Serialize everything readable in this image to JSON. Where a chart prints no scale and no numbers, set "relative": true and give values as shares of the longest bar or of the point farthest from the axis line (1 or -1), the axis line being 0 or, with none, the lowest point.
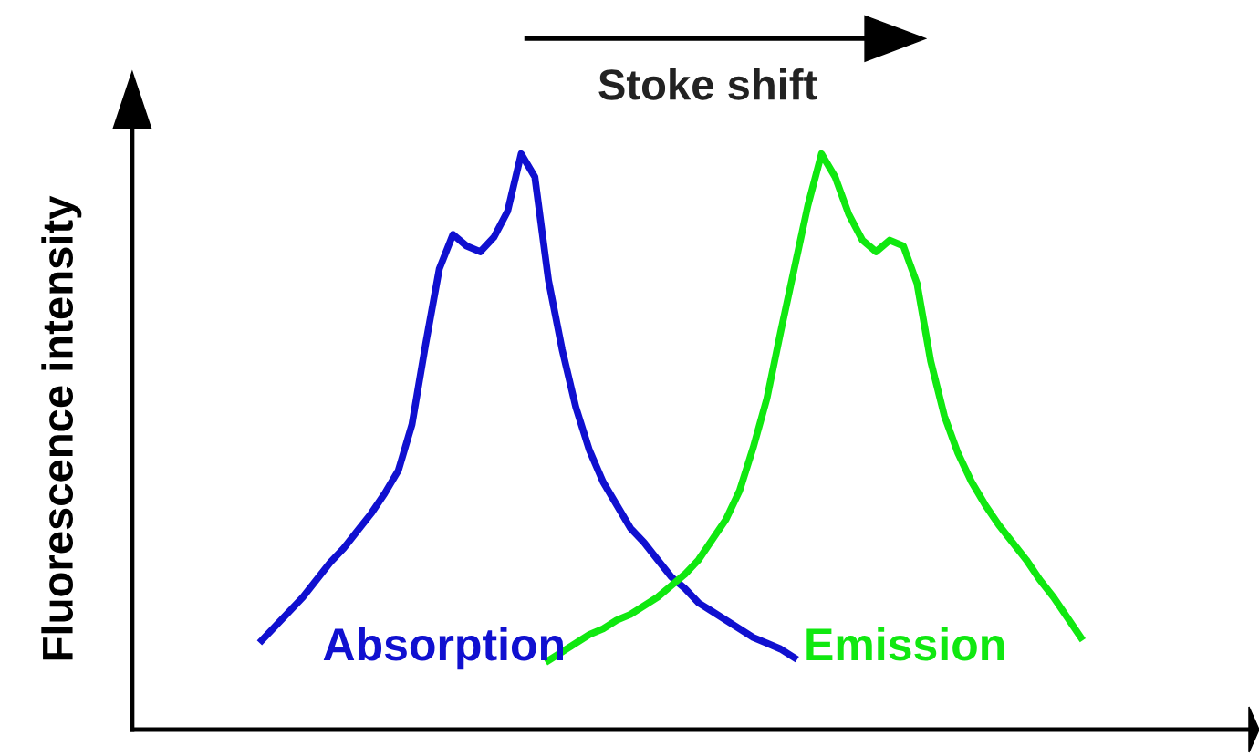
{
  "chart_data": {
    "type": "line",
    "relative": true,
    "ylabel": "Fluorescence intensity",
    "legend": false,
    "grid": false,
    "line_style": "solid",
    "marker": "none",
    "annotations": [
      "Stoke shift"
    ],
    "categories": [
      null,
      null,
      null,
      null,
      null,
      null,
      null,
      null,
      null,
      null,
      null,
      null,
      null,
      null,
      null,
      null,
      null,
      null,
      null,
      null,
      null,
      null,
      null,
      null,
      null,
      null,
      null,
      null,
      null,
      null,
      null,
      null,
      null,
      null,
      null,
      null,
      null,
      null,
      null,
      null,
      null,
      null,
      null,
      null,
      null,
      null,
      null,
      null,
      null,
      null,
      null,
      null,
      null,
      null,
      null,
      null,
      null,
      null,
      null,
      null,
      null,
      null,
      null,
      null,
      null,
      null,
      null,
      null,
      null,
      null,
      null,
      null,
      null,
      null,
      null,
      null,
      null,
      null,
      null,
      null,
      null,
      null
    ],
    "series": [
      {
        "name": "Absorption",
        "color": "#1010d0",
        "values": [
          null,
          null,
          null,
          null,
          null,
          null,
          null,
          null,
          null,
          0.155,
          0.18,
          0.205,
          0.23,
          0.26,
          0.29,
          0.315,
          0.345,
          0.375,
          0.41,
          0.45,
          0.53,
          0.67,
          0.8,
          0.86,
          0.84,
          0.83,
          0.855,
          0.9,
          1.0,
          0.96,
          0.78,
          0.66,
          0.56,
          0.485,
          0.43,
          0.39,
          0.35,
          0.325,
          0.295,
          0.265,
          0.245,
          0.22,
          0.205,
          0.19,
          0.175,
          0.16,
          0.15,
          0.14,
          0.125,
          null,
          null,
          null,
          null,
          null,
          null,
          null,
          null,
          null,
          null,
          null,
          null,
          null,
          null,
          null,
          null,
          null,
          null,
          null,
          null,
          null,
          null,
          null,
          null,
          null,
          null,
          null,
          null,
          null,
          null,
          null,
          null,
          null
        ]
      },
      {
        "name": "Emission",
        "color": "#10e810",
        "values": [
          null,
          null,
          null,
          null,
          null,
          null,
          null,
          null,
          null,
          null,
          null,
          null,
          null,
          null,
          null,
          null,
          null,
          null,
          null,
          null,
          null,
          null,
          null,
          null,
          null,
          null,
          null,
          null,
          null,
          null,
          0.12,
          0.135,
          0.15,
          0.165,
          0.175,
          0.19,
          0.2,
          0.215,
          0.23,
          0.25,
          0.27,
          0.295,
          0.33,
          0.365,
          0.415,
          0.49,
          0.575,
          0.69,
          0.8,
          0.91,
          1.0,
          0.96,
          0.895,
          0.85,
          0.83,
          0.85,
          0.84,
          0.775,
          0.64,
          0.545,
          0.48,
          0.43,
          0.39,
          0.355,
          0.325,
          0.295,
          0.26,
          0.23,
          0.195,
          0.16,
          null,
          null,
          null,
          null,
          null,
          null,
          null,
          null,
          null,
          null,
          null,
          null
        ]
      }
    ]
  }
}
